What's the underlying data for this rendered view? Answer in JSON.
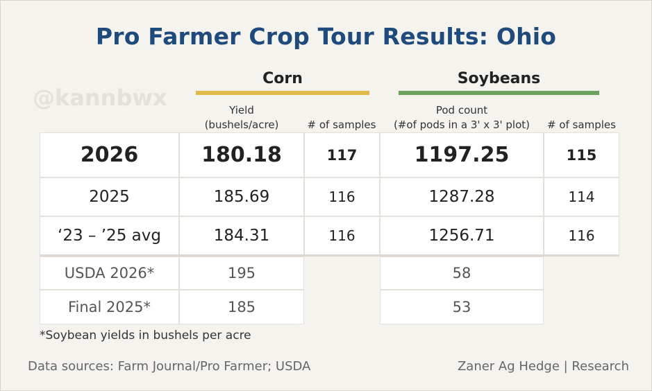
{
  "title": "Pro Farmer Crop Tour Results: Ohio",
  "watermark": "@kannbwx",
  "groups": {
    "corn": {
      "label": "Corn",
      "color": "#e3b94a"
    },
    "soybeans": {
      "label": "Soybeans",
      "color": "#6aa35c"
    }
  },
  "columns": {
    "corn_yield": "Yield\n(bushels/acre)",
    "corn_samples": "# of samples",
    "soy_pods": "Pod count\n(#of pods in a 3' x 3' plot)",
    "soy_samples": "# of samples"
  },
  "footnote": "*Soybean yields in bushels per acre",
  "sources": {
    "left": "Data sources: Farm Journal/Pro Farmer; USDA",
    "right": "Zaner Ag Hedge | Research"
  },
  "chart_data": {
    "type": "table",
    "title": "Pro Farmer Crop Tour Results: Ohio",
    "column_groups": [
      {
        "name": "Corn",
        "columns": [
          "Yield (bushels/acre)",
          "# of samples"
        ]
      },
      {
        "name": "Soybeans",
        "columns": [
          "Pod count (#of pods in a 3' x 3' plot)",
          "# of samples"
        ]
      }
    ],
    "rows": [
      {
        "label": "2026",
        "corn_yield": "180.18",
        "corn_samples": "117",
        "soy_pods": "1197.25",
        "soy_samples": "115"
      },
      {
        "label": "2025",
        "corn_yield": "185.69",
        "corn_samples": "116",
        "soy_pods": "1287.28",
        "soy_samples": "114"
      },
      {
        "label": "‘23 – ’25 avg",
        "corn_yield": "184.31",
        "corn_samples": "116",
        "soy_pods": "1256.71",
        "soy_samples": "116"
      }
    ],
    "extra_rows": [
      {
        "label": "USDA 2026*",
        "corn_yield": "195",
        "soy_yield": "58"
      },
      {
        "label": "Final 2025*",
        "corn_yield": "185",
        "soy_yield": "53"
      }
    ]
  }
}
